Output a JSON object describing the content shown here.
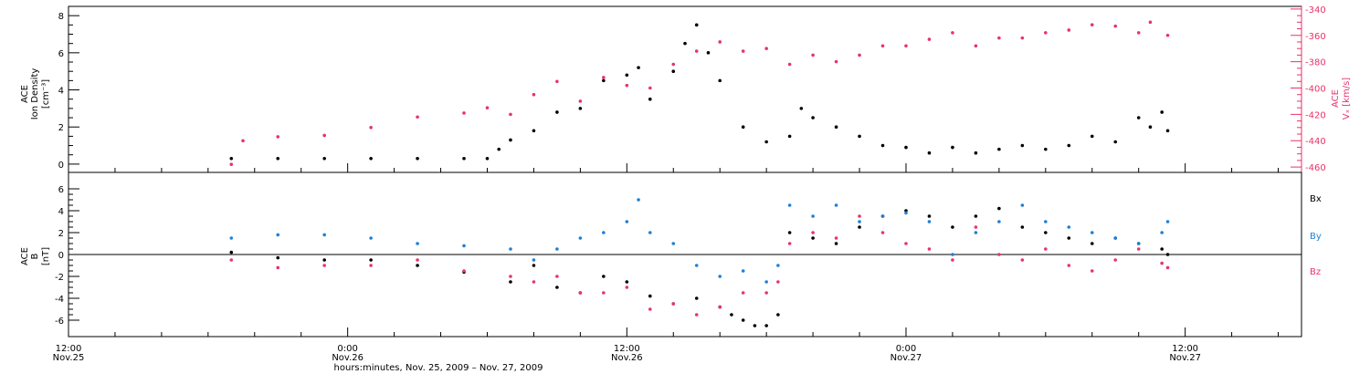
{
  "figure": {
    "xlabel": "hours:minutes, Nov. 25, 2009 – Nov. 27, 2009",
    "x_ticks": [
      {
        "time": "2009-11-25T12:00",
        "line1": "12:00",
        "line2": "Nov.25"
      },
      {
        "time": "2009-11-26T00:00",
        "line1": "0:00",
        "line2": "Nov.26"
      },
      {
        "time": "2009-11-26T12:00",
        "line1": "12:00",
        "line2": "Nov.26"
      },
      {
        "time": "2009-11-27T00:00",
        "line1": "0:00",
        "line2": "Nov.27"
      },
      {
        "time": "2009-11-27T12:00",
        "line1": "12:00",
        "line2": "Nov.27"
      }
    ],
    "x_range": [
      "2009-11-25T12:00",
      "2009-11-27T17:00"
    ]
  },
  "colors": {
    "black": "#000000",
    "pink": "#e8336b",
    "blue": "#1e7fd6"
  },
  "chart_data": [
    {
      "type": "scatter",
      "panel": "top",
      "ylabel_left": [
        "ACE",
        "Ion Density",
        "[cm⁻³]"
      ],
      "ylabel_right": [
        "ACE",
        "Vₓ [km/s]"
      ],
      "ylim_left": [
        -0.3,
        8.5
      ],
      "ylim_right": [
        -462,
        -338
      ],
      "left_ticks": [
        0,
        2,
        4,
        6,
        8
      ],
      "right_ticks": [
        -340,
        -360,
        -380,
        -400,
        -420,
        -440,
        -460
      ],
      "series": [
        {
          "axis": "left",
          "color": "black",
          "points": [
            [
              "2009-11-25T19:00",
              0.3
            ],
            [
              "2009-11-25T21:00",
              0.3
            ],
            [
              "2009-11-25T23:00",
              0.3
            ],
            [
              "2009-11-26T01:00",
              0.3
            ],
            [
              "2009-11-26T03:00",
              0.3
            ],
            [
              "2009-11-26T05:00",
              0.3
            ],
            [
              "2009-11-26T06:00",
              0.3
            ],
            [
              "2009-11-26T06:30",
              0.8
            ],
            [
              "2009-11-26T07:00",
              1.3
            ],
            [
              "2009-11-26T08:00",
              1.8
            ],
            [
              "2009-11-26T09:00",
              2.8
            ],
            [
              "2009-11-26T10:00",
              3.0
            ],
            [
              "2009-11-26T11:00",
              4.5
            ],
            [
              "2009-11-26T12:00",
              4.8
            ],
            [
              "2009-11-26T12:30",
              5.2
            ],
            [
              "2009-11-26T13:00",
              3.5
            ],
            [
              "2009-11-26T14:00",
              5.0
            ],
            [
              "2009-11-26T14:30",
              6.5
            ],
            [
              "2009-11-26T15:00",
              7.5
            ],
            [
              "2009-11-26T15:30",
              6.0
            ],
            [
              "2009-11-26T16:00",
              4.5
            ],
            [
              "2009-11-26T17:00",
              2.0
            ],
            [
              "2009-11-26T18:00",
              1.2
            ],
            [
              "2009-11-26T19:00",
              1.5
            ],
            [
              "2009-11-26T19:30",
              3.0
            ],
            [
              "2009-11-26T20:00",
              2.5
            ],
            [
              "2009-11-26T21:00",
              2.0
            ],
            [
              "2009-11-26T22:00",
              1.5
            ],
            [
              "2009-11-26T23:00",
              1.0
            ],
            [
              "2009-11-27T00:00",
              0.9
            ],
            [
              "2009-11-27T01:00",
              0.6
            ],
            [
              "2009-11-27T02:00",
              0.9
            ],
            [
              "2009-11-27T03:00",
              0.6
            ],
            [
              "2009-11-27T04:00",
              0.8
            ],
            [
              "2009-11-27T05:00",
              1.0
            ],
            [
              "2009-11-27T06:00",
              0.8
            ],
            [
              "2009-11-27T07:00",
              1.0
            ],
            [
              "2009-11-27T08:00",
              1.5
            ],
            [
              "2009-11-27T09:00",
              1.2
            ],
            [
              "2009-11-27T10:00",
              2.5
            ],
            [
              "2009-11-27T10:30",
              2.0
            ],
            [
              "2009-11-27T11:00",
              2.8
            ],
            [
              "2009-11-27T11:15",
              1.8
            ]
          ]
        },
        {
          "axis": "right",
          "color": "pink",
          "points": [
            [
              "2009-11-25T19:00",
              -458
            ],
            [
              "2009-11-25T19:30",
              -440
            ],
            [
              "2009-11-25T21:00",
              -437
            ],
            [
              "2009-11-25T23:00",
              -436
            ],
            [
              "2009-11-26T01:00",
              -430
            ],
            [
              "2009-11-26T03:00",
              -422
            ],
            [
              "2009-11-26T05:00",
              -419
            ],
            [
              "2009-11-26T06:00",
              -415
            ],
            [
              "2009-11-26T07:00",
              -420
            ],
            [
              "2009-11-26T08:00",
              -405
            ],
            [
              "2009-11-26T09:00",
              -395
            ],
            [
              "2009-11-26T10:00",
              -410
            ],
            [
              "2009-11-26T11:00",
              -392
            ],
            [
              "2009-11-26T12:00",
              -398
            ],
            [
              "2009-11-26T13:00",
              -400
            ],
            [
              "2009-11-26T14:00",
              -382
            ],
            [
              "2009-11-26T15:00",
              -372
            ],
            [
              "2009-11-26T16:00",
              -365
            ],
            [
              "2009-11-26T17:00",
              -372
            ],
            [
              "2009-11-26T18:00",
              -370
            ],
            [
              "2009-11-26T19:00",
              -382
            ],
            [
              "2009-11-26T20:00",
              -375
            ],
            [
              "2009-11-26T21:00",
              -380
            ],
            [
              "2009-11-26T22:00",
              -375
            ],
            [
              "2009-11-26T23:00",
              -368
            ],
            [
              "2009-11-27T00:00",
              -368
            ],
            [
              "2009-11-27T01:00",
              -363
            ],
            [
              "2009-11-27T02:00",
              -358
            ],
            [
              "2009-11-27T03:00",
              -368
            ],
            [
              "2009-11-27T04:00",
              -362
            ],
            [
              "2009-11-27T05:00",
              -362
            ],
            [
              "2009-11-27T06:00",
              -358
            ],
            [
              "2009-11-27T07:00",
              -356
            ],
            [
              "2009-11-27T08:00",
              -352
            ],
            [
              "2009-11-27T09:00",
              -353
            ],
            [
              "2009-11-27T10:00",
              -358
            ],
            [
              "2009-11-27T10:30",
              -350
            ],
            [
              "2009-11-27T11:15",
              -360
            ]
          ]
        }
      ]
    },
    {
      "type": "scatter",
      "panel": "bottom",
      "ylabel_left": [
        "ACE",
        "B",
        "[nT]"
      ],
      "ylim": [
        -7.5,
        7.5
      ],
      "y_ticks": [
        -6,
        -4,
        -2,
        0,
        2,
        4,
        6
      ],
      "legend_placement": "right",
      "series": [
        {
          "name": "Bx",
          "color": "black",
          "points": [
            [
              "2009-11-25T19:00",
              0.2
            ],
            [
              "2009-11-25T21:00",
              -0.3
            ],
            [
              "2009-11-25T23:00",
              -0.5
            ],
            [
              "2009-11-26T01:00",
              -0.5
            ],
            [
              "2009-11-26T03:00",
              -1.0
            ],
            [
              "2009-11-26T05:00",
              -1.6
            ],
            [
              "2009-11-26T07:00",
              -2.5
            ],
            [
              "2009-11-26T08:00",
              -1.0
            ],
            [
              "2009-11-26T09:00",
              -3.0
            ],
            [
              "2009-11-26T10:00",
              -3.5
            ],
            [
              "2009-11-26T11:00",
              -2.0
            ],
            [
              "2009-11-26T12:00",
              -2.5
            ],
            [
              "2009-11-26T13:00",
              -3.8
            ],
            [
              "2009-11-26T14:00",
              -4.5
            ],
            [
              "2009-11-26T15:00",
              -4.0
            ],
            [
              "2009-11-26T16:00",
              -4.8
            ],
            [
              "2009-11-26T16:30",
              -5.5
            ],
            [
              "2009-11-26T17:00",
              -6.0
            ],
            [
              "2009-11-26T17:30",
              -6.5
            ],
            [
              "2009-11-26T18:00",
              -6.5
            ],
            [
              "2009-11-26T18:30",
              -5.5
            ],
            [
              "2009-11-26T19:00",
              2.0
            ],
            [
              "2009-11-26T20:00",
              1.5
            ],
            [
              "2009-11-26T21:00",
              1.0
            ],
            [
              "2009-11-26T22:00",
              2.5
            ],
            [
              "2009-11-26T23:00",
              3.5
            ],
            [
              "2009-11-27T00:00",
              4.0
            ],
            [
              "2009-11-27T01:00",
              3.5
            ],
            [
              "2009-11-27T02:00",
              2.5
            ],
            [
              "2009-11-27T03:00",
              3.5
            ],
            [
              "2009-11-27T04:00",
              4.2
            ],
            [
              "2009-11-27T05:00",
              2.5
            ],
            [
              "2009-11-27T06:00",
              2.0
            ],
            [
              "2009-11-27T07:00",
              1.5
            ],
            [
              "2009-11-27T08:00",
              1.0
            ],
            [
              "2009-11-27T09:00",
              1.5
            ],
            [
              "2009-11-27T10:00",
              1.0
            ],
            [
              "2009-11-27T11:00",
              0.5
            ],
            [
              "2009-11-27T11:15",
              0.0
            ]
          ]
        },
        {
          "name": "By",
          "color": "blue",
          "points": [
            [
              "2009-11-25T19:00",
              1.5
            ],
            [
              "2009-11-25T21:00",
              1.8
            ],
            [
              "2009-11-25T23:00",
              1.8
            ],
            [
              "2009-11-26T01:00",
              1.5
            ],
            [
              "2009-11-26T03:00",
              1.0
            ],
            [
              "2009-11-26T05:00",
              0.8
            ],
            [
              "2009-11-26T07:00",
              0.5
            ],
            [
              "2009-11-26T08:00",
              -0.5
            ],
            [
              "2009-11-26T09:00",
              0.5
            ],
            [
              "2009-11-26T10:00",
              1.5
            ],
            [
              "2009-11-26T11:00",
              2.0
            ],
            [
              "2009-11-26T12:00",
              3.0
            ],
            [
              "2009-11-26T12:30",
              5.0
            ],
            [
              "2009-11-26T13:00",
              2.0
            ],
            [
              "2009-11-26T14:00",
              1.0
            ],
            [
              "2009-11-26T15:00",
              -1.0
            ],
            [
              "2009-11-26T16:00",
              -2.0
            ],
            [
              "2009-11-26T17:00",
              -1.5
            ],
            [
              "2009-11-26T18:00",
              -2.5
            ],
            [
              "2009-11-26T18:30",
              -1.0
            ],
            [
              "2009-11-26T19:00",
              4.5
            ],
            [
              "2009-11-26T20:00",
              3.5
            ],
            [
              "2009-11-26T21:00",
              4.5
            ],
            [
              "2009-11-26T22:00",
              3.0
            ],
            [
              "2009-11-26T23:00",
              3.5
            ],
            [
              "2009-11-27T00:00",
              3.8
            ],
            [
              "2009-11-27T01:00",
              3.0
            ],
            [
              "2009-11-27T02:00",
              0.0
            ],
            [
              "2009-11-27T03:00",
              2.0
            ],
            [
              "2009-11-27T04:00",
              3.0
            ],
            [
              "2009-11-27T05:00",
              4.5
            ],
            [
              "2009-11-27T06:00",
              3.0
            ],
            [
              "2009-11-27T07:00",
              2.5
            ],
            [
              "2009-11-27T08:00",
              2.0
            ],
            [
              "2009-11-27T09:00",
              1.5
            ],
            [
              "2009-11-27T10:00",
              1.0
            ],
            [
              "2009-11-27T11:00",
              2.0
            ],
            [
              "2009-11-27T11:15",
              3.0
            ]
          ]
        },
        {
          "name": "Bz",
          "color": "pink",
          "points": [
            [
              "2009-11-25T19:00",
              -0.5
            ],
            [
              "2009-11-25T21:00",
              -1.2
            ],
            [
              "2009-11-25T23:00",
              -1.0
            ],
            [
              "2009-11-26T01:00",
              -1.0
            ],
            [
              "2009-11-26T03:00",
              -0.5
            ],
            [
              "2009-11-26T05:00",
              -1.5
            ],
            [
              "2009-11-26T07:00",
              -2.0
            ],
            [
              "2009-11-26T08:00",
              -2.5
            ],
            [
              "2009-11-26T09:00",
              -2.0
            ],
            [
              "2009-11-26T10:00",
              -3.5
            ],
            [
              "2009-11-26T11:00",
              -3.5
            ],
            [
              "2009-11-26T12:00",
              -3.0
            ],
            [
              "2009-11-26T13:00",
              -5.0
            ],
            [
              "2009-11-26T14:00",
              -4.5
            ],
            [
              "2009-11-26T15:00",
              -5.5
            ],
            [
              "2009-11-26T16:00",
              -4.8
            ],
            [
              "2009-11-26T17:00",
              -3.5
            ],
            [
              "2009-11-26T18:00",
              -3.5
            ],
            [
              "2009-11-26T18:30",
              -2.5
            ],
            [
              "2009-11-26T19:00",
              1.0
            ],
            [
              "2009-11-26T20:00",
              2.0
            ],
            [
              "2009-11-26T21:00",
              1.5
            ],
            [
              "2009-11-26T22:00",
              3.5
            ],
            [
              "2009-11-26T23:00",
              2.0
            ],
            [
              "2009-11-27T00:00",
              1.0
            ],
            [
              "2009-11-27T01:00",
              0.5
            ],
            [
              "2009-11-27T02:00",
              -0.5
            ],
            [
              "2009-11-27T03:00",
              2.5
            ],
            [
              "2009-11-27T04:00",
              0.0
            ],
            [
              "2009-11-27T05:00",
              -0.5
            ],
            [
              "2009-11-27T06:00",
              0.5
            ],
            [
              "2009-11-27T07:00",
              -1.0
            ],
            [
              "2009-11-27T08:00",
              -1.5
            ],
            [
              "2009-11-27T09:00",
              -0.5
            ],
            [
              "2009-11-27T10:00",
              0.5
            ],
            [
              "2009-11-27T11:00",
              -0.8
            ],
            [
              "2009-11-27T11:15",
              -1.2
            ]
          ]
        }
      ]
    }
  ]
}
